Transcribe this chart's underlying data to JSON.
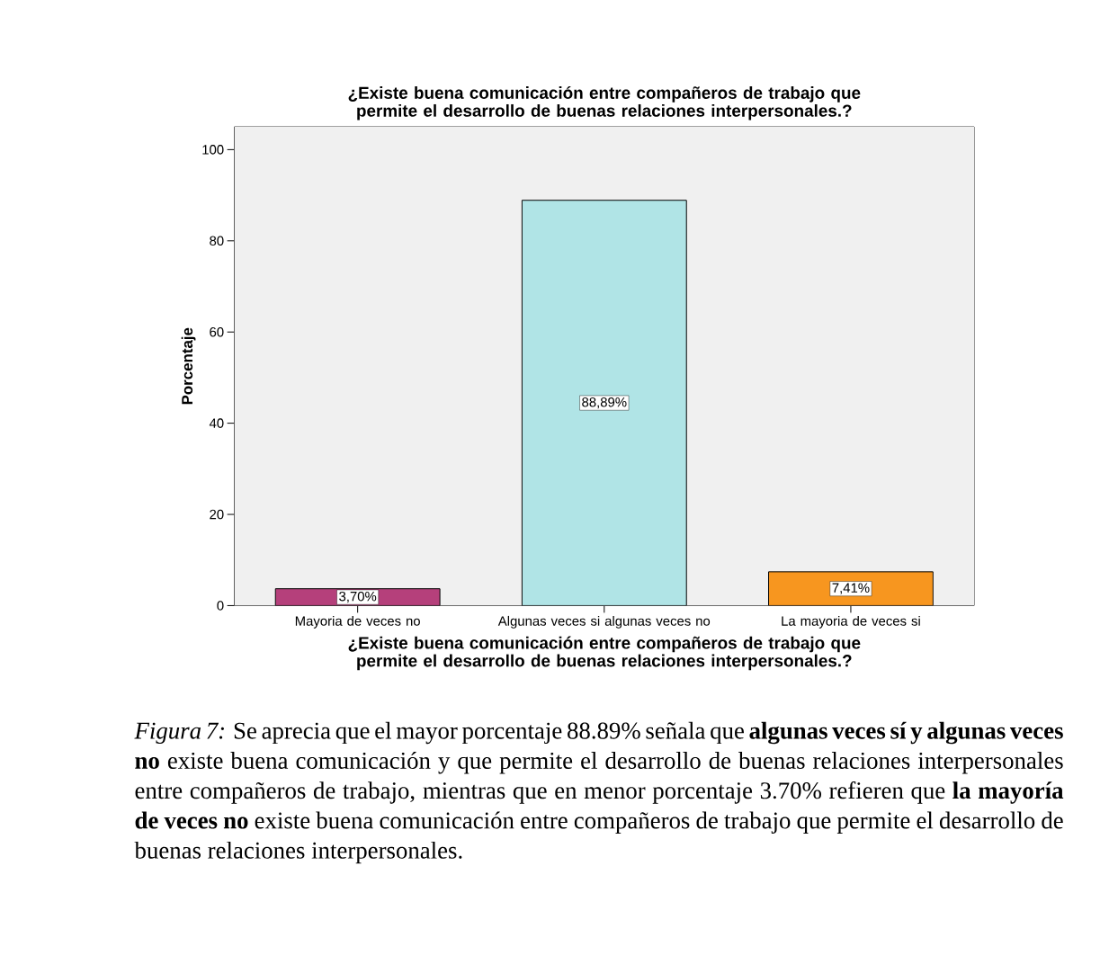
{
  "chart_data": {
    "type": "bar",
    "title": "¿Existe  buena comunicación  entre compañeros de trabajo  que  permite el desarrollo de buenas relaciones interpersonales.?",
    "xlabel": "¿Existe  buena comunicación  entre compañeros de trabajo  que  permite el desarrollo de buenas relaciones interpersonales.?",
    "ylabel": "Porcentaje",
    "categories": [
      "Mayoria de veces no",
      "Algunas veces si algunas veces no",
      "La mayoria de veces si"
    ],
    "values": [
      3.7,
      88.89,
      7.41
    ],
    "value_labels": [
      "3,70%",
      "88,89%",
      "7,41%"
    ],
    "colors": [
      "#b5407b",
      "#b0e4e6",
      "#f7961f"
    ],
    "ylim": [
      0,
      105
    ],
    "yticks": [
      0,
      20,
      40,
      60,
      80,
      100
    ],
    "annotations": [
      "*Figura 7:* Se aprecia que el mayor porcentaje 88.89% señala que **algunas veces sí y algunas veces no** existe buena comunicación y que permite el desarrollo de buenas relaciones interpersonales entre compañeros de trabajo, mientras que en menor porcentaje 3.70% refieren que **la mayoría de veces no** existe buena comunicación entre compañeros de trabajo que permite el desarrollo de buenas relaciones interpersonales."
    ]
  }
}
